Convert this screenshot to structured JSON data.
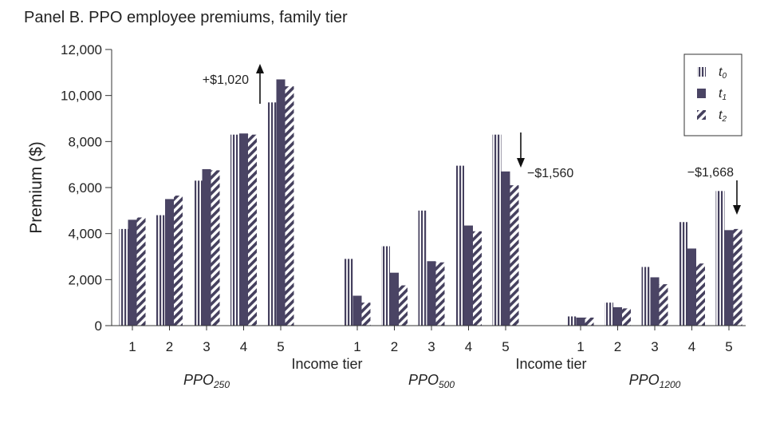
{
  "chart_data": {
    "type": "bar",
    "title": "Panel B. PPO employee premiums, family tier",
    "ylabel": "Premium ($)",
    "xlabel": "Income tier",
    "ylim": [
      0,
      12000
    ],
    "yticks": [
      "0",
      "2,000",
      "4,000",
      "6,000",
      "8,000",
      "10,000",
      "12,000"
    ],
    "ytick_values": [
      0,
      2000,
      4000,
      6000,
      8000,
      10000,
      12000
    ],
    "categories": [
      "1",
      "2",
      "3",
      "4",
      "5"
    ],
    "groups": [
      {
        "name": "PPO",
        "sub": "250",
        "t0": [
          4200,
          4800,
          6300,
          8300,
          9700
        ],
        "t1": [
          4600,
          5500,
          6800,
          8350,
          10700
        ],
        "t2": [
          4700,
          5650,
          6750,
          8300,
          10400
        ]
      },
      {
        "name": "PPO",
        "sub": "500",
        "t0": [
          2900,
          3450,
          5000,
          6950,
          8300
        ],
        "t1": [
          1300,
          2300,
          2800,
          4350,
          6700
        ],
        "t2": [
          1000,
          1750,
          2750,
          4100,
          6100
        ]
      },
      {
        "name": "PPO",
        "sub": "1200",
        "t0": [
          400,
          1000,
          2550,
          4500,
          5850
        ],
        "t1": [
          350,
          800,
          2100,
          3350,
          4150
        ],
        "t2": [
          350,
          750,
          1800,
          2700,
          4200
        ]
      }
    ],
    "series": [
      {
        "name": "t",
        "sub": "0",
        "pattern": "vertical-stripes",
        "color": "#45405e"
      },
      {
        "name": "t",
        "sub": "1",
        "pattern": "solid",
        "color": "#4a4464"
      },
      {
        "name": "t",
        "sub": "2",
        "pattern": "diagonal-stripes",
        "color": "#45405e"
      }
    ],
    "annotations": [
      {
        "text": "+$1,020",
        "group": 0,
        "category": 4,
        "direction": "up"
      },
      {
        "text": "−$1,560",
        "group": 1,
        "category": 4,
        "direction": "down"
      },
      {
        "text": "−$1,668",
        "group": 2,
        "category": 4,
        "direction": "down"
      }
    ],
    "legend_position": "top-right",
    "grid": false
  }
}
